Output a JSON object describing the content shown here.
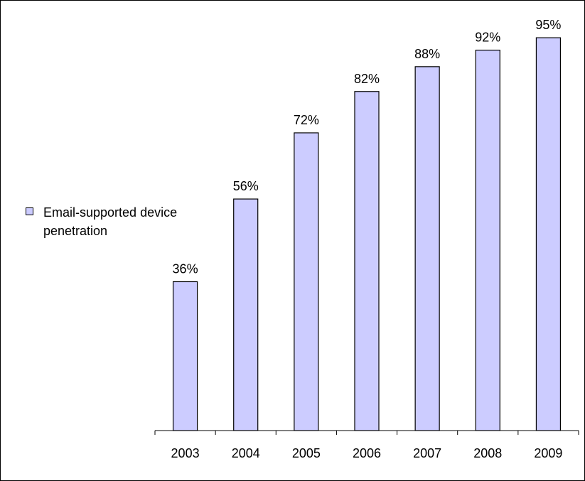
{
  "colors": {
    "bar_fill": "#ccccff",
    "bar_stroke": "#000000",
    "axis": "#000000"
  },
  "legend": {
    "label": "Email-supported device penetration",
    "placement": "left"
  },
  "chart_data": {
    "type": "bar",
    "categories": [
      "2003",
      "2004",
      "2005",
      "2006",
      "2007",
      "2008",
      "2009"
    ],
    "series": [
      {
        "name": "Email-supported device penetration",
        "values": [
          36,
          56,
          72,
          82,
          88,
          92,
          95
        ],
        "data_labels": [
          "36%",
          "56%",
          "72%",
          "82%",
          "88%",
          "92%",
          "95%"
        ]
      }
    ],
    "title": "",
    "xlabel": "",
    "ylabel": "",
    "ylim": [
      0,
      100
    ],
    "grid": false,
    "show_y_axis": false
  }
}
